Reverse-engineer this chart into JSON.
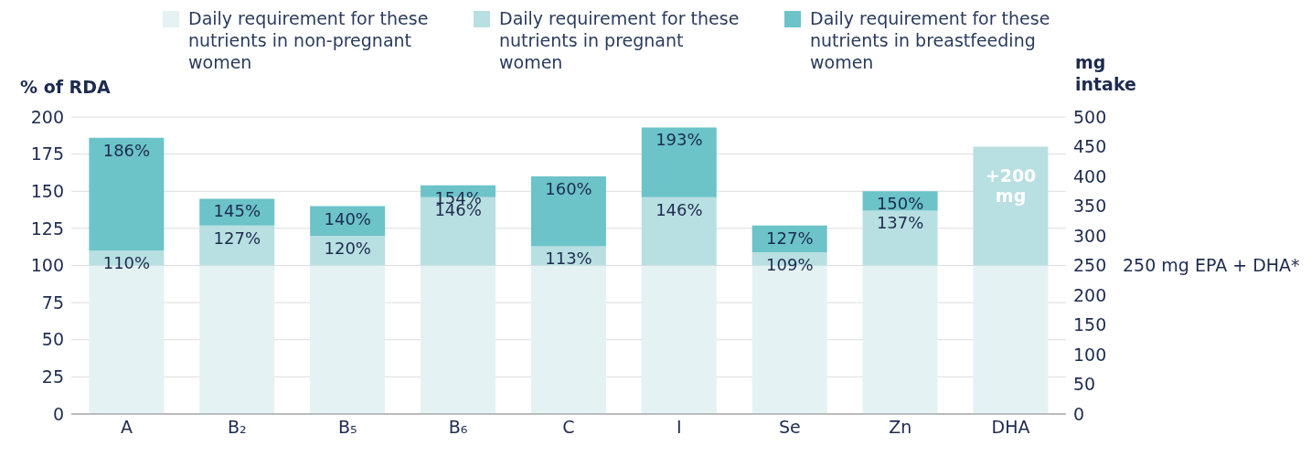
{
  "chart_data": {
    "type": "bar",
    "stacked": true,
    "ylabel": "% of RDA",
    "y2label": "mg intake",
    "categories": [
      "A",
      "B₂",
      "B₅",
      "B₆",
      "C",
      "I",
      "Se",
      "Zn",
      "DHA"
    ],
    "ylim": [
      0,
      200
    ],
    "yticks": [
      0,
      25,
      50,
      75,
      100,
      125,
      150,
      175,
      200
    ],
    "y2lim": [
      0,
      500
    ],
    "y2ticks": [
      0,
      50,
      100,
      150,
      200,
      250,
      300,
      350,
      400,
      450,
      500
    ],
    "grid": "y",
    "legend": "top",
    "series": [
      {
        "name": "Daily requirement for these nutrients in non-pregnant women",
        "color": "#e4f2f3",
        "values": [
          100,
          100,
          100,
          100,
          100,
          100,
          100,
          100,
          null
        ]
      },
      {
        "name": "Daily requirement for these nutrients in pregnant women",
        "color": "#b8dfe1",
        "values": [
          10,
          27,
          20,
          46,
          13,
          46,
          9,
          37,
          null
        ]
      },
      {
        "name": "Daily requirement for these nutrients in breastfeeding women",
        "color": "#6cc3c8",
        "values": [
          76,
          18,
          20,
          8,
          47,
          47,
          18,
          13,
          null
        ]
      },
      {
        "color": "#e4f2f3",
        "axis": "y2",
        "values": [
          null,
          null,
          null,
          null,
          null,
          null,
          null,
          null,
          250
        ]
      },
      {
        "color": "#b8dfe1",
        "axis": "y2",
        "values": [
          null,
          null,
          null,
          null,
          null,
          null,
          null,
          null,
          200
        ],
        "value_labels": [
          null,
          null,
          null,
          null,
          null,
          null,
          null,
          null,
          "+200 mg"
        ]
      }
    ],
    "annotations": [
      "250 mg EPA + DHA*",
      {
        "text": "110%",
        "x": "A",
        "y": 110
      },
      {
        "text": "186%",
        "x": "A",
        "y": 186
      },
      {
        "text": "127%",
        "x": "B₂",
        "y": 127
      },
      {
        "text": "145%",
        "x": "B₂",
        "y": 145
      },
      {
        "text": "120%",
        "x": "B₅",
        "y": 120
      },
      {
        "text": "140%",
        "x": "B₅",
        "y": 140
      },
      {
        "text": "146%",
        "x": "B₆",
        "y": 146
      },
      {
        "text": "154%",
        "x": "B₆",
        "y": 154
      },
      {
        "text": "113%",
        "x": "C",
        "y": 113
      },
      {
        "text": "160%",
        "x": "C",
        "y": 160
      },
      {
        "text": "146%",
        "x": "I",
        "y": 146
      },
      {
        "text": "193%",
        "x": "I",
        "y": 193
      },
      {
        "text": "109%",
        "x": "Se",
        "y": 109
      },
      {
        "text": "127%",
        "x": "Se",
        "y": 127
      },
      {
        "text": "137%",
        "x": "Zn",
        "y": 137
      },
      {
        "text": "150%",
        "x": "Zn",
        "y": 150
      }
    ]
  }
}
